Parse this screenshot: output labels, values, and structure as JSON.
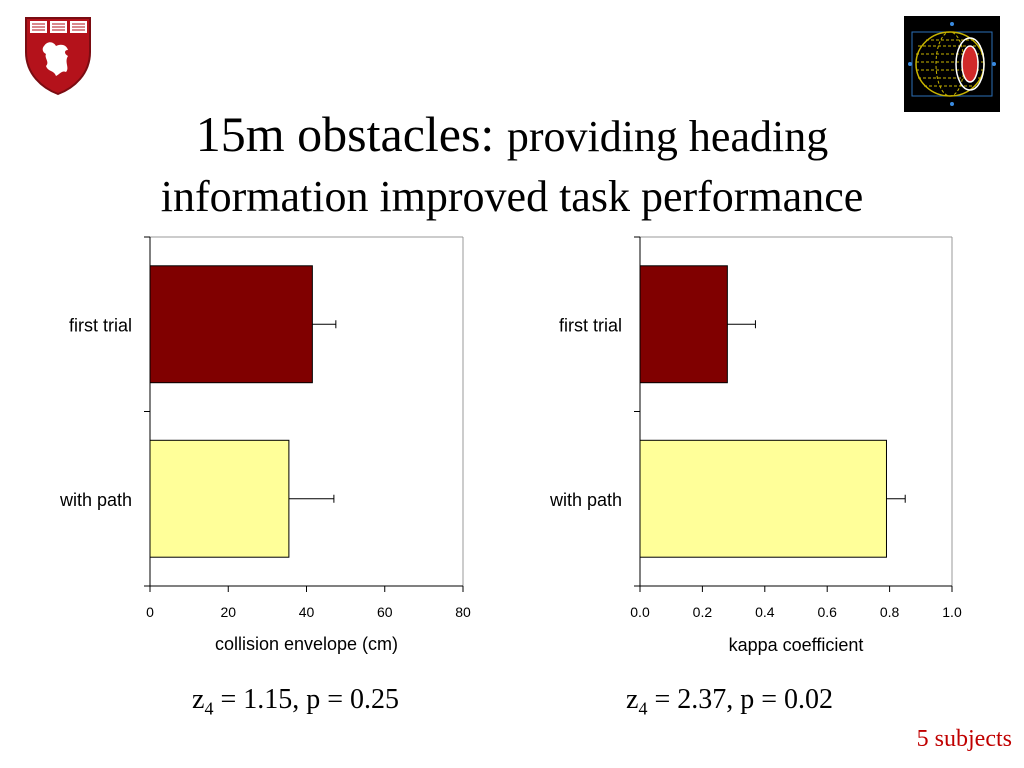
{
  "slide": {
    "title_main": "15m obstacles:",
    "title_rest": "providing heading",
    "title_line2": "information improved task performance",
    "stats_left": {
      "z_prefix": "z",
      "z_sub": "4",
      "z_rest": " = 1.15, p = 0.25"
    },
    "stats_right": {
      "z_prefix": "z",
      "z_sub": "4",
      "z_rest": " = 2.37, p = 0.02"
    },
    "footnote": "5 subjects"
  },
  "colors": {
    "first_trial": "#800000",
    "with_path": "#ffff99",
    "footnote": "#c00000"
  },
  "chart_data": [
    {
      "type": "bar",
      "orientation": "horizontal",
      "categories": [
        "first trial",
        "with path"
      ],
      "values": [
        41.5,
        35.5
      ],
      "errors": [
        6,
        11.5
      ],
      "xlabel": "collision envelope (cm)",
      "xlim": [
        0,
        80
      ],
      "xticks": [
        "0",
        "20",
        "40",
        "60",
        "80"
      ],
      "grid": false
    },
    {
      "type": "bar",
      "orientation": "horizontal",
      "categories": [
        "first trial",
        "with path"
      ],
      "values": [
        0.28,
        0.79
      ],
      "errors": [
        0.09,
        0.06
      ],
      "xlabel": "kappa coefficient",
      "xlim": [
        0,
        1
      ],
      "xticks": [
        "0.0",
        "0.2",
        "0.4",
        "0.6",
        "0.8",
        "1.0"
      ],
      "grid": false
    }
  ]
}
